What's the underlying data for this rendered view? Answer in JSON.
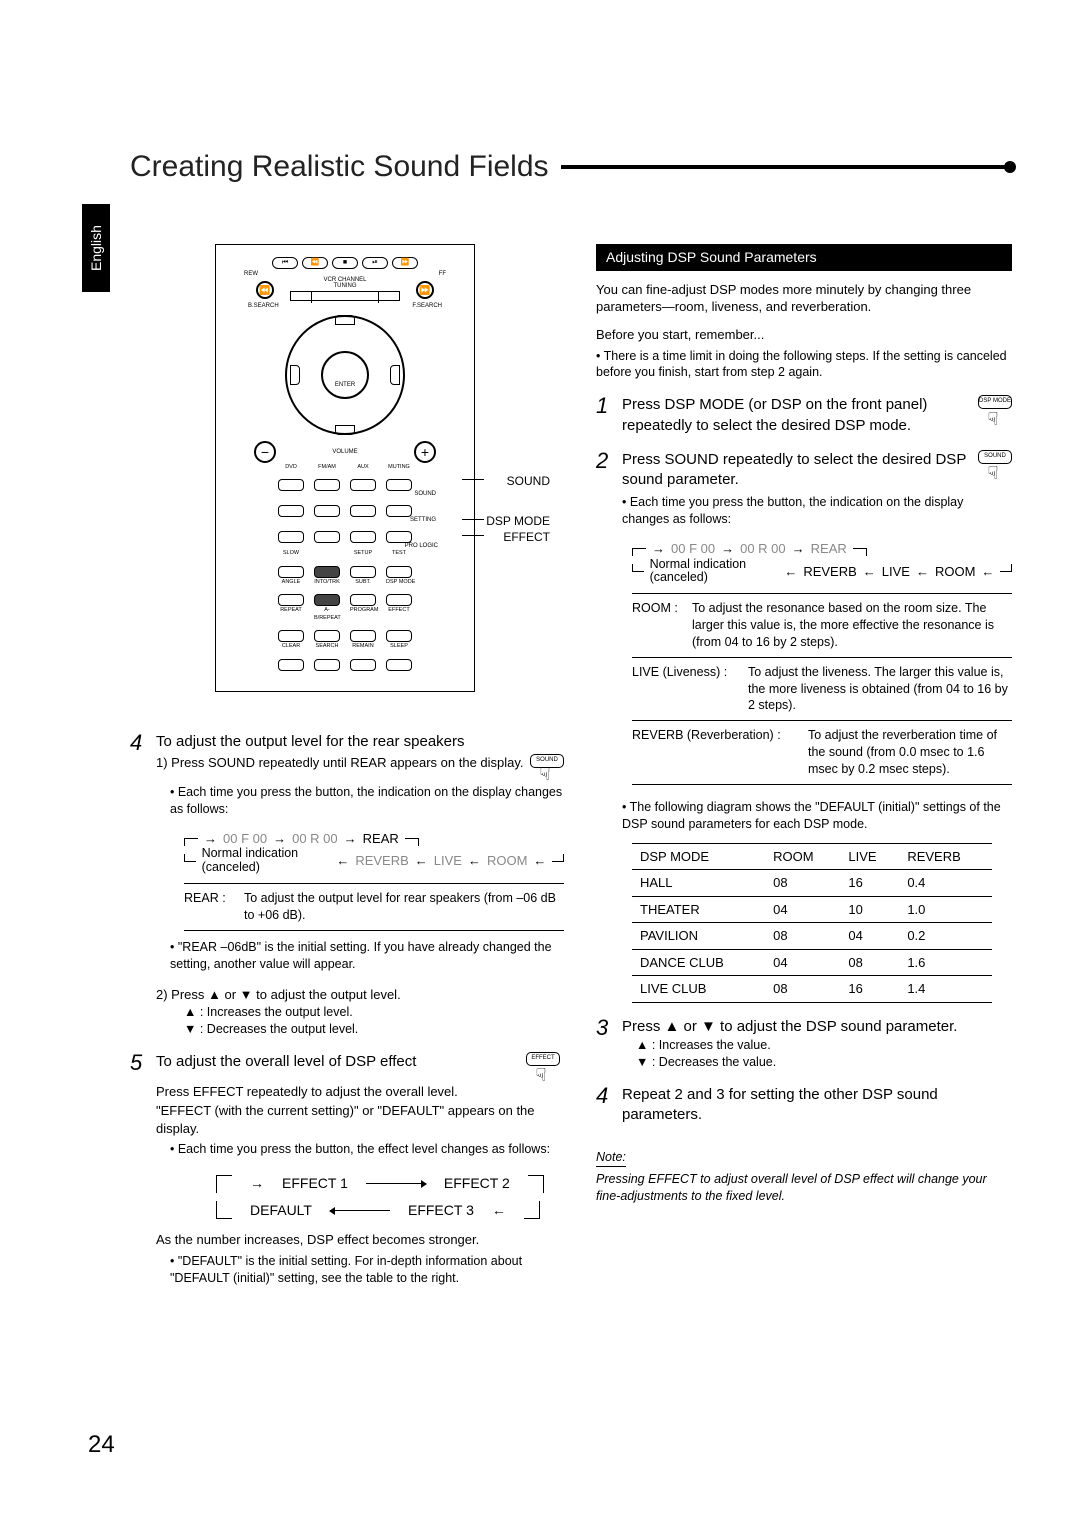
{
  "language_tab": "English",
  "title": "Creating Realistic Sound Fields",
  "page_number": "24",
  "remote": {
    "top_labels": {
      "rew": "REW",
      "ff": "FF",
      "tuning": "VCR CHANNEL\nTUNING",
      "bsearch": "B.SEARCH",
      "fsearch": "F.SEARCH",
      "enter": "ENTER",
      "volume": "VOLUME",
      "dvd": "DVD",
      "fmam": "FM/AM",
      "aux": "AUX",
      "muting": "MUTING"
    },
    "side": {
      "sound": "SOUND",
      "dsp": "DSP MODE",
      "effect": "EFFECT"
    },
    "row4_labels": [
      "SLOW",
      "",
      "SETUP",
      "TEST"
    ],
    "row5_labels": [
      "ANGLE",
      "INTO/TRK",
      "SUBT.",
      "DSP MODE"
    ],
    "row6_labels": [
      "REPEAT",
      "A-B/REPEAT",
      "PROGRAM",
      "EFFECT"
    ],
    "row7_labels": [
      "CLEAR",
      "SEARCH",
      "REMAIN",
      "SLEEP"
    ],
    "setting": "SETTING",
    "prologic": "PRO LOGIC",
    "sound": "SOUND"
  },
  "left": {
    "s4_title": "To adjust the output level for the rear speakers",
    "s4_1": "1) Press SOUND repeatedly until REAR appears on the display.",
    "s4_1_icon": "SOUND",
    "s4_1_note": "• Each time you press the button, the indication on the display changes as follows:",
    "flow": {
      "a": "00 F 00",
      "b": "00 R 00",
      "c": "REAR",
      "d": "REVERB",
      "e": "LIVE",
      "f": "ROOM",
      "cancel": "Normal indication (canceled)"
    },
    "rear_def_key": "REAR :",
    "rear_def": "To adjust the output level for rear speakers (from –06 dB to +06 dB).",
    "rear_note": "• \"REAR –06dB\" is the initial setting. If you have already changed the setting, another value will appear.",
    "s4_2": "2) Press ▲ or ▼ to adjust the output level.",
    "s4_2a": "▲ : Increases the output level.",
    "s4_2b": "▼ : Decreases the output level.",
    "s5_title": "To adjust the overall level of DSP effect",
    "s5_icon": "EFFECT",
    "s5_a": "Press EFFECT repeatedly to adjust the overall level.",
    "s5_b": "\"EFFECT (with the current setting)\" or \"DEFAULT\" appears on the display.",
    "s5_c": "• Each time you press the button, the effect level changes as follows:",
    "eflow": {
      "e1": "EFFECT 1",
      "e2": "EFFECT 2",
      "e3": "EFFECT 3",
      "def": "DEFAULT"
    },
    "s5_d": "As the number increases, DSP effect becomes stronger.",
    "s5_e": "• \"DEFAULT\" is the initial setting. For in-depth information about \"DEFAULT (initial)\" setting, see the table to the right."
  },
  "right": {
    "heading": "Adjusting DSP Sound Parameters",
    "intro": "You can fine-adjust DSP modes more minutely by changing three parameters—room, liveness, and reverberation.",
    "before": "Before you start, remember...",
    "before_note": "• There is a time limit in doing the following steps. If the setting is canceled before you finish, start from step 2 again.",
    "s1": "Press DSP MODE (or DSP on the front panel) repeatedly to select the desired DSP mode.",
    "s1_icon": "DSP MODE",
    "s2": "Press SOUND repeatedly to select the desired DSP sound parameter.",
    "s2_icon": "SOUND",
    "s2_note": "• Each time you press the button, the indication on the display changes as follows:",
    "flow": {
      "a": "00 F 00",
      "b": "00 R 00",
      "c": "REAR",
      "d": "REVERB",
      "e": "LIVE",
      "f": "ROOM",
      "cancel": "Normal indication (canceled)"
    },
    "defs": {
      "room_k": "ROOM :",
      "room": "To adjust the resonance based on the room size. The larger this value is, the more effective the resonance is (from 04 to 16 by 2 steps).",
      "live_k": "LIVE (Liveness) :",
      "live": "To adjust the liveness. The larger this value is, the more liveness is obtained (from 04 to 16 by 2 steps).",
      "reverb_k": "REVERB (Reverberation) :",
      "reverb": "To adjust the reverberation time of the sound (from 0.0 msec to 1.6 msec by 0.2 msec steps)."
    },
    "table_intro": "• The following diagram shows the \"DEFAULT (initial)\" settings of the DSP sound parameters for each DSP mode.",
    "table": {
      "head": [
        "DSP MODE",
        "ROOM",
        "LIVE",
        "REVERB"
      ],
      "rows": [
        [
          "HALL",
          "08",
          "16",
          "0.4"
        ],
        [
          "THEATER",
          "04",
          "10",
          "1.0"
        ],
        [
          "PAVILION",
          "08",
          "04",
          "0.2"
        ],
        [
          "DANCE CLUB",
          "04",
          "08",
          "1.6"
        ],
        [
          "LIVE CLUB",
          "08",
          "16",
          "1.4"
        ]
      ]
    },
    "s3": "Press ▲ or ▼ to adjust the DSP sound parameter.",
    "s3a": "▲ : Increases the value.",
    "s3b": "▼ : Decreases the value.",
    "s4": "Repeat 2 and 3 for setting the other DSP sound parameters.",
    "note_hdr": "Note:",
    "note": "Pressing EFFECT to adjust overall level of DSP effect will change your fine-adjustments to the fixed level."
  }
}
